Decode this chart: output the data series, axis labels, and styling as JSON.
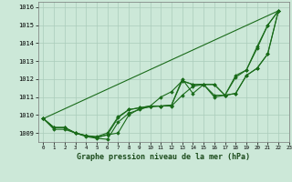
{
  "title": "Graphe pression niveau de la mer (hPa)",
  "bg_color": "#cce8d8",
  "grid_color": "#aaccbb",
  "line_color": "#1a6b1a",
  "marker_color": "#1a6b1a",
  "xlim": [
    -0.5,
    23
  ],
  "ylim": [
    1008.5,
    1016.3
  ],
  "yticks": [
    1009,
    1010,
    1011,
    1012,
    1013,
    1014,
    1015,
    1016
  ],
  "xticks": [
    0,
    1,
    2,
    3,
    4,
    5,
    6,
    7,
    8,
    9,
    10,
    11,
    12,
    13,
    14,
    15,
    16,
    17,
    18,
    19,
    20,
    21,
    22,
    23
  ],
  "series_no_marker": [
    [
      0,
      1009.8
    ],
    [
      22,
      1015.8
    ]
  ],
  "series": [
    [
      1009.8,
      1009.3,
      1009.3,
      1009.0,
      1008.8,
      1008.7,
      1008.65,
      1009.6,
      1010.1,
      1010.3,
      1010.5,
      1011.0,
      1011.3,
      1011.9,
      1011.7,
      1011.7,
      1011.0,
      1011.1,
      1012.1,
      1012.5,
      1013.7,
      1015.0,
      1015.8
    ],
    [
      1009.8,
      1009.3,
      1009.3,
      1009.0,
      1008.85,
      1008.8,
      1009.0,
      1009.9,
      1010.3,
      1010.4,
      1010.5,
      1010.5,
      1010.5,
      1011.1,
      1011.6,
      1011.7,
      1011.7,
      1011.1,
      1011.2,
      1012.2,
      1012.6,
      1013.4,
      1015.8
    ],
    [
      1009.8,
      1009.3,
      1009.3,
      1009.0,
      1008.85,
      1008.75,
      1008.9,
      1009.85,
      1010.3,
      1010.4,
      1010.5,
      1010.5,
      1010.55,
      1011.9,
      1011.7,
      1011.7,
      1011.7,
      1011.1,
      1011.2,
      1012.2,
      1012.6,
      1013.4,
      1015.8
    ],
    [
      1009.8,
      1009.2,
      1009.2,
      1009.0,
      1008.85,
      1008.75,
      1008.9,
      1009.0,
      1010.0,
      1010.35,
      1010.45,
      1010.5,
      1010.55,
      1012.0,
      1011.2,
      1011.7,
      1011.1,
      1011.1,
      1012.2,
      1012.5,
      1013.8,
      1015.0,
      1015.8
    ]
  ],
  "ylabel_fontsize": 5,
  "xlabel_fontsize": 6,
  "tick_labelsize": 5
}
